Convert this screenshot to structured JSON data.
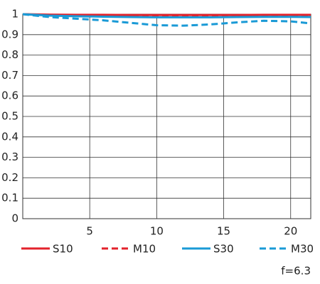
{
  "chart_data": {
    "type": "line",
    "x": [
      0,
      2,
      4,
      6,
      8,
      10,
      12,
      14,
      16,
      18,
      20,
      21.5
    ],
    "series": [
      {
        "name": "S10",
        "color": "#e3222b",
        "dash": false,
        "values": [
          1.0,
          0.998,
          0.997,
          0.997,
          0.996,
          0.996,
          0.996,
          0.996,
          0.996,
          0.997,
          0.997,
          0.997
        ]
      },
      {
        "name": "M10",
        "color": "#e3222b",
        "dash": true,
        "values": [
          1.0,
          0.995,
          0.993,
          0.992,
          0.991,
          0.99,
          0.99,
          0.99,
          0.991,
          0.992,
          0.992,
          0.991
        ]
      },
      {
        "name": "S30",
        "color": "#1a9ad6",
        "dash": false,
        "values": [
          1.0,
          0.993,
          0.99,
          0.988,
          0.986,
          0.985,
          0.985,
          0.985,
          0.986,
          0.987,
          0.987,
          0.986
        ]
      },
      {
        "name": "M30",
        "color": "#1a9ad6",
        "dash": true,
        "values": [
          1.0,
          0.986,
          0.978,
          0.97,
          0.958,
          0.946,
          0.944,
          0.95,
          0.96,
          0.968,
          0.965,
          0.955
        ]
      }
    ],
    "xlim": [
      0,
      21.5
    ],
    "xticks": [
      5,
      10,
      15,
      20
    ],
    "ylim": [
      0,
      1
    ],
    "yticks": [
      0,
      0.1,
      0.2,
      0.3,
      0.4,
      0.5,
      0.6,
      0.7,
      0.8,
      0.9,
      1
    ],
    "grid": true,
    "annotation": "f=6.3"
  }
}
